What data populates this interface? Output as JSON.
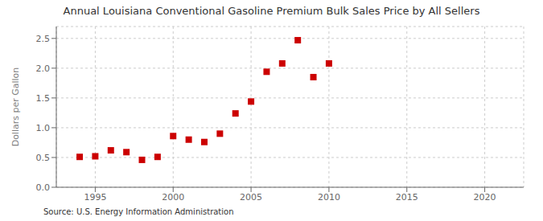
{
  "chart_data": {
    "type": "scatter",
    "title": "Annual Louisiana Conventional Gasoline Premium Bulk Sales Price by All Sellers",
    "ylabel": "Dollars per Gallon",
    "annotations": [
      "Source: U.S. Energy Information Administration"
    ],
    "x": [
      1994,
      1995,
      1996,
      1997,
      1998,
      1999,
      2000,
      2001,
      2002,
      2003,
      2004,
      2005,
      2006,
      2007,
      2008,
      2009,
      2010
    ],
    "values": [
      0.51,
      0.52,
      0.62,
      0.59,
      0.46,
      0.51,
      0.86,
      0.8,
      0.76,
      0.9,
      1.24,
      1.44,
      1.94,
      2.08,
      2.47,
      1.85,
      2.08
    ],
    "color": "#cc0000",
    "marker": "square",
    "xlim": [
      1992.5,
      2022.5
    ],
    "xticks": [
      1995,
      2000,
      2005,
      2010,
      2015,
      2020
    ],
    "ylim": [
      0.0,
      2.7
    ],
    "yticks": [
      {
        "value": 0.0,
        "label": "0.0"
      },
      0.5,
      {
        "value": 1.0,
        "label": "1.0"
      },
      1.5,
      {
        "value": 2.0,
        "label": "2.0"
      },
      2.5
    ],
    "grid": true
  }
}
